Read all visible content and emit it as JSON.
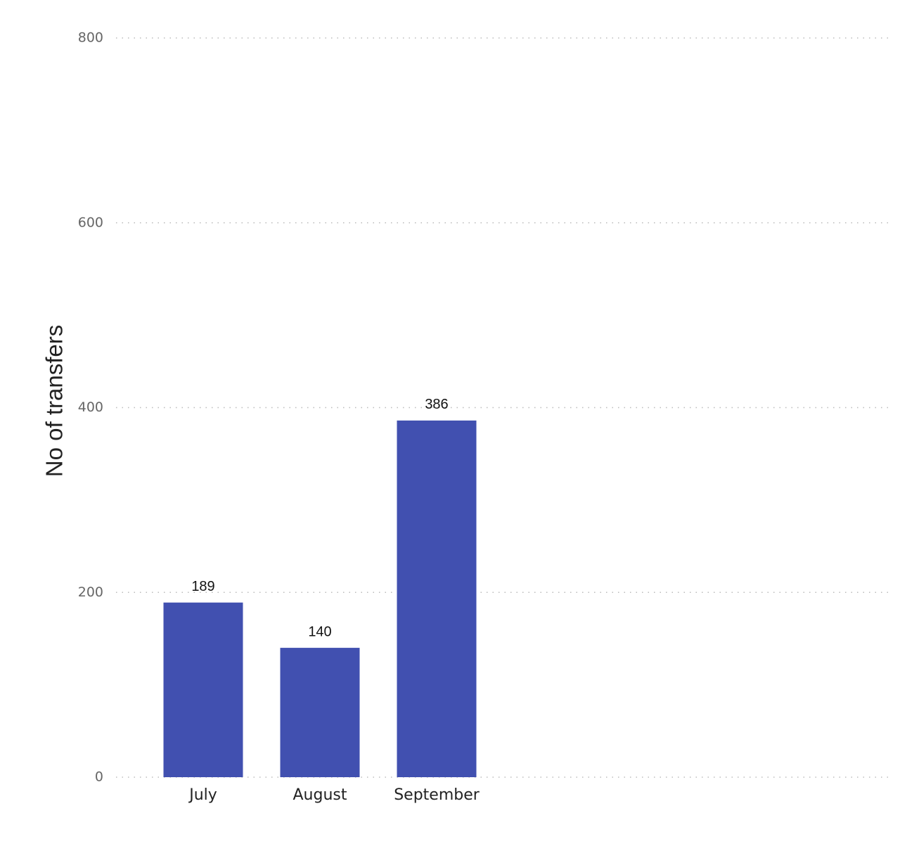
{
  "chart_data": {
    "type": "bar",
    "y_label": "No of transfers",
    "categories": [
      "July",
      "August",
      "September"
    ],
    "values": [
      189,
      140,
      386
    ],
    "color": "#4150b0",
    "ylim": [
      0,
      800
    ],
    "yticks": [
      0,
      200,
      400,
      600,
      800
    ],
    "grid": true
  }
}
